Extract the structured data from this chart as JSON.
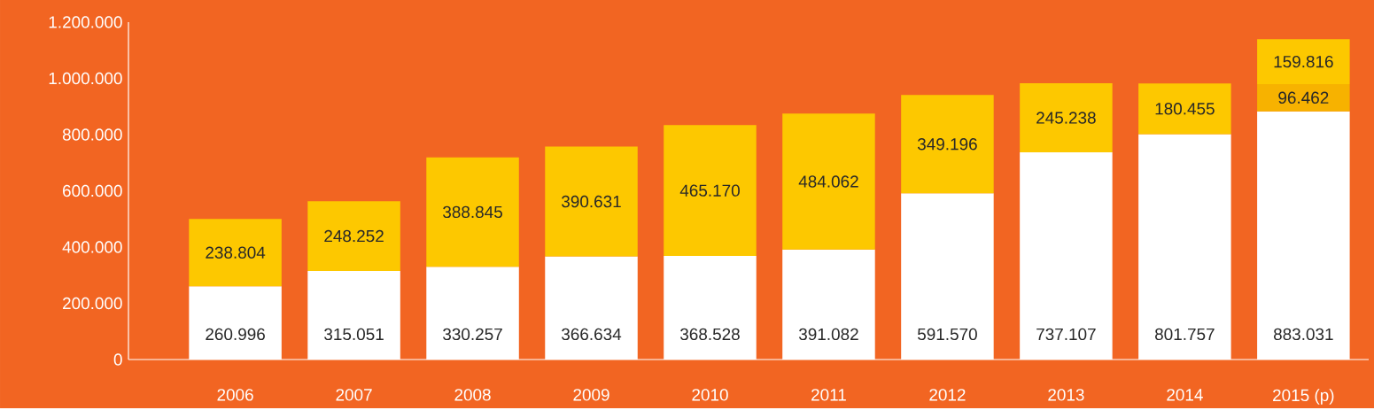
{
  "chart_data": {
    "type": "bar",
    "stacked": true,
    "categories": [
      "2006",
      "2007",
      "2008",
      "2009",
      "2010",
      "2011",
      "2012",
      "2013",
      "2014",
      "2015 (p)"
    ],
    "series": [
      {
        "color": "#ffffff",
        "values": [
          260996,
          315051,
          330257,
          366634,
          368528,
          391082,
          591570,
          737107,
          801757,
          883031
        ],
        "value_labels": [
          "260.996",
          "315.051",
          "330.257",
          "366.634",
          "368.528",
          "391.082",
          "591.570",
          "737.107",
          "801.757",
          "883.031"
        ]
      },
      {
        "color": "#f7b200",
        "values": [
          null,
          null,
          null,
          null,
          null,
          null,
          null,
          null,
          null,
          96462
        ],
        "value_labels": [
          null,
          null,
          null,
          null,
          null,
          null,
          null,
          null,
          null,
          "96.462"
        ]
      },
      {
        "color": "#fdc800",
        "values": [
          238804,
          248252,
          388845,
          390631,
          465170,
          484062,
          349196,
          245238,
          180455,
          159816
        ],
        "value_labels": [
          "238.804",
          "248.252",
          "388.845",
          "390.631",
          "465.170",
          "484.062",
          "349.196",
          "245.238",
          "180.455",
          "159.816"
        ]
      }
    ],
    "ylim": [
      0,
      1200000
    ],
    "yticks": [
      0,
      {
        "value": 200000,
        "label": "200.000"
      },
      {
        "value": 400000,
        "label": "400.000"
      },
      {
        "value": 600000,
        "label": "600.000"
      },
      {
        "value": 800000,
        "label": "800.000"
      },
      {
        "value": 1000000,
        "label": "1.000.000"
      },
      {
        "value": 1200000,
        "label": "1.200.000"
      }
    ]
  }
}
